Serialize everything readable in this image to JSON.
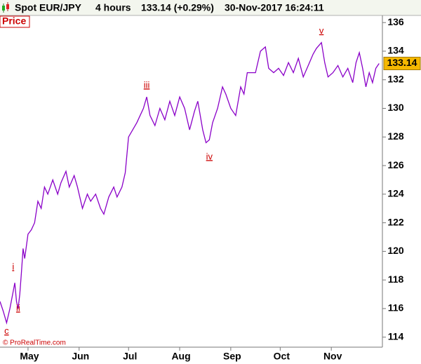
{
  "chart_data": {
    "type": "line",
    "title": "Spot EUR/JPY",
    "interval": "4 hours",
    "quote": "133.14 (+0.29%)",
    "timestamp": "30-Nov-2017 16:24:11",
    "panel_label": "Price",
    "credit": "© ProRealTime.com",
    "last_price": 133.14,
    "x": [
      -17,
      -15,
      -13,
      -11,
      -9,
      -8,
      -7,
      -6,
      -5,
      -4,
      -3,
      -2,
      0,
      2,
      4,
      6,
      8,
      10,
      12,
      15,
      18,
      20,
      23,
      25,
      28,
      30,
      33,
      36,
      38,
      41,
      44,
      46,
      49,
      52,
      54,
      57,
      59,
      61,
      64,
      66,
      70,
      72,
      74,
      77,
      80,
      83,
      86,
      89,
      92,
      95,
      98,
      101,
      103,
      106,
      108,
      110,
      112,
      115,
      118,
      120,
      123,
      126,
      129,
      131,
      133,
      135,
      138,
      141,
      144,
      146,
      149,
      152,
      155,
      158,
      161,
      164,
      167,
      170,
      173,
      175,
      178,
      180,
      182,
      185,
      188,
      191,
      194,
      197,
      199,
      201,
      203,
      205,
      207,
      209,
      211,
      213
    ],
    "series": [
      {
        "name": "EUR/JPY",
        "color": "#8a00c8",
        "values": [
          116.5,
          115.8,
          115.0,
          116.0,
          117.2,
          117.8,
          116.5,
          116.0,
          117.0,
          118.5,
          120.2,
          119.5,
          121.2,
          121.5,
          122.0,
          123.5,
          123.0,
          124.5,
          124.0,
          125.0,
          124.0,
          124.8,
          125.6,
          124.5,
          125.3,
          124.5,
          123.0,
          124.0,
          123.5,
          124.0,
          123.0,
          122.6,
          123.8,
          124.5,
          123.8,
          124.5,
          125.5,
          128.0,
          128.6,
          129.0,
          130.0,
          130.8,
          129.5,
          128.8,
          130.0,
          129.2,
          130.5,
          129.5,
          130.8,
          130.0,
          128.5,
          129.8,
          130.5,
          128.5,
          127.6,
          127.8,
          129.0,
          130.0,
          131.5,
          131.0,
          130.0,
          129.5,
          131.5,
          131.0,
          132.5,
          132.5,
          132.5,
          134.0,
          134.3,
          132.8,
          132.5,
          132.8,
          132.3,
          133.2,
          132.5,
          133.5,
          132.2,
          133.0,
          133.8,
          134.2,
          134.6,
          133.2,
          132.2,
          132.5,
          133.0,
          132.2,
          132.8,
          131.8,
          133.2,
          133.9,
          132.8,
          131.5,
          132.5,
          131.8,
          132.8,
          133.14
        ]
      }
    ],
    "annotations": [
      {
        "text": "c",
        "x": -13,
        "y": 114.4
      },
      {
        "text": "i",
        "x": -9,
        "y": 118.9
      },
      {
        "text": "ii",
        "x": -6,
        "y": 116.0
      },
      {
        "text": "iii",
        "x": 72,
        "y": 131.6
      },
      {
        "text": "iv",
        "x": 110,
        "y": 126.6
      },
      {
        "text": "v",
        "x": 178,
        "y": 135.4
      }
    ],
    "xlim": [
      -17,
      215
    ],
    "xticks": [
      {
        "value": 0,
        "label": "May"
      },
      {
        "value": 31,
        "label": "Jun"
      },
      {
        "value": 61,
        "label": "Jul"
      },
      {
        "value": 92,
        "label": "Aug"
      },
      {
        "value": 123,
        "label": "Sep"
      },
      {
        "value": 153,
        "label": "Oct"
      },
      {
        "value": 184,
        "label": "Nov"
      }
    ],
    "ylim": [
      113.3,
      136.5
    ],
    "yticks": [
      114,
      116,
      118,
      120,
      122,
      124,
      126,
      128,
      130,
      132,
      134,
      136
    ]
  }
}
